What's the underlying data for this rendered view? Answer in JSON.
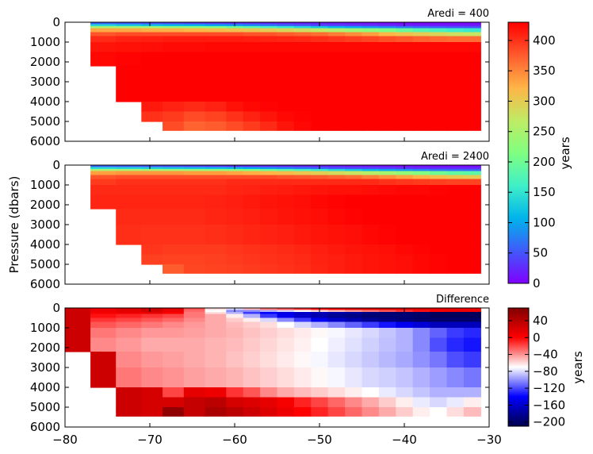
{
  "chart_data": [
    {
      "type": "heatmap",
      "title": "Aredi = 400",
      "xlim": [
        -80,
        -30
      ],
      "ylim": [
        6000,
        0
      ],
      "ylabel": "",
      "yticks": [
        "0",
        "1000",
        "2000",
        "3000",
        "4000",
        "5000",
        "6000"
      ],
      "colorbar": {
        "range": [
          0,
          430
        ],
        "label": "years",
        "ticks": [
          "0",
          "50",
          "100",
          "150",
          "200",
          "250",
          "300",
          "350",
          "400"
        ],
        "colormap": "rainbow"
      },
      "x_edges": [
        -80,
        -77,
        -74,
        -71,
        -68.5,
        -66,
        -63.5,
        -61,
        -59,
        -57,
        -55,
        -53,
        -51,
        -49,
        -47,
        -45,
        -43,
        -41,
        -39,
        -37,
        -35,
        -33,
        -31
      ],
      "depth_edges": [
        0,
        100,
        200,
        300,
        500,
        700,
        1000,
        1500,
        2200,
        3000,
        4000,
        4500,
        5000,
        5450
      ],
      "values": [
        [
          null,
          60,
          55,
          50,
          45,
          40,
          35,
          30,
          28,
          25,
          22,
          20,
          18,
          15,
          12,
          10,
          8,
          6,
          5,
          5,
          5,
          5
        ],
        [
          null,
          140,
          130,
          120,
          115,
          110,
          100,
          95,
          85,
          75,
          65,
          55,
          45,
          40,
          35,
          30,
          25,
          20,
          18,
          16,
          15,
          15
        ],
        [
          null,
          250,
          245,
          240,
          230,
          225,
          215,
          200,
          185,
          170,
          155,
          140,
          125,
          110,
          100,
          90,
          80,
          70,
          60,
          55,
          50,
          48
        ],
        [
          null,
          330,
          330,
          325,
          325,
          320,
          315,
          310,
          305,
          300,
          290,
          280,
          270,
          255,
          240,
          225,
          210,
          195,
          180,
          170,
          160,
          155
        ],
        [
          null,
          380,
          385,
          385,
          385,
          385,
          385,
          385,
          380,
          380,
          375,
          370,
          365,
          355,
          345,
          335,
          320,
          310,
          300,
          290,
          280,
          275
        ],
        [
          null,
          405,
          410,
          412,
          414,
          414,
          414,
          413,
          412,
          410,
          408,
          406,
          402,
          398,
          393,
          388,
          383,
          378,
          372,
          368,
          365,
          365
        ],
        [
          null,
          418,
          420,
          422,
          424,
          424,
          425,
          425,
          425,
          425,
          425,
          425,
          425,
          425,
          425,
          425,
          425,
          425,
          425,
          425,
          425,
          425
        ],
        [
          null,
          425,
          428,
          430,
          430,
          430,
          430,
          430,
          430,
          430,
          430,
          430,
          430,
          430,
          430,
          430,
          430,
          430,
          430,
          430,
          430,
          430
        ],
        [
          null,
          null,
          430,
          430,
          430,
          430,
          430,
          430,
          430,
          430,
          430,
          430,
          430,
          430,
          430,
          430,
          430,
          430,
          430,
          430,
          430,
          430
        ],
        [
          null,
          null,
          430,
          430,
          430,
          430,
          430,
          430,
          430,
          430,
          430,
          430,
          430,
          430,
          430,
          430,
          430,
          430,
          430,
          430,
          430,
          430
        ],
        [
          null,
          null,
          null,
          415,
          410,
          405,
          410,
          420,
          425,
          428,
          430,
          430,
          430,
          430,
          430,
          430,
          430,
          430,
          430,
          430,
          430,
          430
        ],
        [
          null,
          null,
          null,
          400,
          395,
          385,
          390,
          400,
          410,
          418,
          425,
          428,
          430,
          430,
          430,
          430,
          430,
          430,
          430,
          430,
          430,
          430
        ],
        [
          null,
          null,
          null,
          null,
          385,
          370,
          375,
          385,
          395,
          405,
          418,
          425,
          430,
          430,
          430,
          430,
          430,
          430,
          430,
          430,
          430,
          430
        ]
      ]
    },
    {
      "type": "heatmap",
      "title": "Aredi = 2400",
      "xlim": [
        -80,
        -30
      ],
      "ylim": [
        6000,
        0
      ],
      "ylabel": "Pressure (dbars)",
      "yticks": [
        "0",
        "1000",
        "2000",
        "3000",
        "4000",
        "5000",
        "6000"
      ],
      "colorbar": {
        "range": [
          0,
          430
        ],
        "label": "years",
        "colormap": "rainbow"
      },
      "x_edges": [
        -80,
        -77,
        -74,
        -71,
        -68.5,
        -66,
        -63.5,
        -61,
        -59,
        -57,
        -55,
        -53,
        -51,
        -49,
        -47,
        -45,
        -43,
        -41,
        -39,
        -37,
        -35,
        -33,
        -31
      ],
      "depth_edges": [
        0,
        100,
        200,
        300,
        500,
        700,
        1000,
        1500,
        2200,
        3000,
        4000,
        4500,
        5000,
        5450
      ],
      "values": [
        [
          null,
          60,
          55,
          50,
          45,
          40,
          35,
          30,
          28,
          25,
          22,
          20,
          18,
          15,
          12,
          10,
          8,
          6,
          5,
          5,
          5,
          5
        ],
        [
          null,
          145,
          140,
          135,
          130,
          125,
          120,
          115,
          105,
          95,
          85,
          75,
          65,
          55,
          50,
          45,
          40,
          35,
          30,
          28,
          26,
          25
        ],
        [
          null,
          255,
          255,
          250,
          245,
          240,
          235,
          225,
          215,
          200,
          185,
          170,
          155,
          140,
          125,
          110,
          100,
          90,
          80,
          70,
          65,
          60
        ],
        [
          null,
          335,
          340,
          340,
          340,
          335,
          335,
          330,
          325,
          320,
          315,
          305,
          295,
          285,
          275,
          260,
          245,
          230,
          215,
          200,
          190,
          185
        ],
        [
          null,
          380,
          385,
          385,
          385,
          385,
          385,
          385,
          385,
          385,
          380,
          378,
          375,
          370,
          365,
          355,
          345,
          335,
          325,
          315,
          305,
          300
        ],
        [
          null,
          395,
          400,
          400,
          400,
          400,
          400,
          405,
          405,
          405,
          405,
          405,
          405,
          405,
          405,
          405,
          400,
          398,
          395,
          392,
          390,
          390
        ],
        [
          null,
          405,
          405,
          405,
          405,
          405,
          405,
          408,
          410,
          412,
          414,
          416,
          418,
          420,
          420,
          422,
          424,
          425,
          426,
          428,
          430,
          430
        ],
        [
          null,
          408,
          408,
          408,
          408,
          408,
          410,
          412,
          415,
          418,
          420,
          422,
          425,
          428,
          430,
          430,
          430,
          430,
          430,
          430,
          430,
          430
        ],
        [
          null,
          null,
          405,
          405,
          405,
          405,
          408,
          410,
          412,
          415,
          418,
          420,
          422,
          425,
          428,
          430,
          430,
          430,
          430,
          430,
          430,
          430
        ],
        [
          null,
          null,
          402,
          400,
          400,
          400,
          402,
          405,
          408,
          410,
          412,
          415,
          418,
          420,
          422,
          425,
          428,
          430,
          430,
          430,
          430,
          430
        ],
        [
          null,
          null,
          null,
          398,
          395,
          395,
          395,
          398,
          400,
          402,
          405,
          408,
          412,
          415,
          418,
          420,
          422,
          425,
          428,
          430,
          430,
          430
        ],
        [
          null,
          null,
          null,
          392,
          390,
          390,
          392,
          395,
          398,
          400,
          402,
          405,
          410,
          412,
          415,
          418,
          420,
          422,
          425,
          428,
          430,
          430
        ],
        [
          null,
          null,
          null,
          null,
          375,
          388,
          390,
          392,
          395,
          398,
          400,
          404,
          408,
          412,
          415,
          418,
          420,
          422,
          425,
          428,
          430,
          430
        ]
      ]
    },
    {
      "type": "heatmap",
      "title": "Difference",
      "xlim": [
        -80,
        -30
      ],
      "ylim": [
        6000,
        0
      ],
      "xticks": [
        "−80",
        "−70",
        "−60",
        "−50",
        "−40",
        "−30"
      ],
      "yticks": [
        "0",
        "1000",
        "2000",
        "3000",
        "4000",
        "5000",
        "6000"
      ],
      "colorbar": {
        "range": [
          -210,
          70
        ],
        "label": "years",
        "ticks": [
          "40",
          "0",
          "−40",
          "−80",
          "−120",
          "−160",
          "−200"
        ],
        "colormap": "seismic"
      },
      "x_edges": [
        -80,
        -77,
        -74,
        -71,
        -68.5,
        -66,
        -63.5,
        -61,
        -59,
        -57,
        -55,
        -53,
        -51,
        -49,
        -47,
        -45,
        -43,
        -41,
        -39,
        -37,
        -35,
        -33,
        -31
      ],
      "depth_edges": [
        0,
        100,
        200,
        300,
        500,
        700,
        1000,
        1500,
        2200,
        3000,
        4000,
        4500,
        5000,
        5450
      ],
      "values": [
        [
          25,
          5,
          15,
          25,
          10,
          -30,
          -70,
          -90,
          -60,
          -40,
          -30,
          -20,
          -10,
          0,
          10,
          10,
          15,
          15,
          15,
          10,
          10,
          5
        ],
        [
          25,
          5,
          12,
          20,
          5,
          -35,
          -80,
          -110,
          -110,
          -100,
          -90,
          -80,
          -70,
          -60,
          -50,
          -40,
          -30,
          -20,
          -10,
          0,
          5,
          5
        ],
        [
          25,
          0,
          5,
          10,
          0,
          -40,
          -70,
          -100,
          -130,
          -145,
          -155,
          -165,
          -170,
          -175,
          -180,
          -190,
          -195,
          -200,
          -200,
          -205,
          -205,
          -205
        ],
        [
          25,
          -10,
          -15,
          -20,
          -25,
          -40,
          -55,
          -75,
          -100,
          -130,
          -150,
          -165,
          -175,
          -185,
          -190,
          -195,
          -195,
          -195,
          -200,
          -205,
          -205,
          -205
        ],
        [
          25,
          -20,
          -25,
          -30,
          -35,
          -45,
          -55,
          -65,
          -75,
          -90,
          -110,
          -130,
          -150,
          -165,
          -175,
          -185,
          -190,
          -195,
          -200,
          -200,
          -200,
          -200
        ],
        [
          25,
          -30,
          -35,
          -40,
          -45,
          -50,
          -55,
          -60,
          -65,
          -70,
          -80,
          -90,
          -100,
          -110,
          -120,
          -130,
          -140,
          -150,
          -160,
          -170,
          -170,
          -170
        ],
        [
          25,
          -40,
          -45,
          -50,
          -50,
          -52,
          -55,
          -58,
          -62,
          -66,
          -70,
          -74,
          -78,
          -82,
          -86,
          -90,
          -95,
          -100,
          -110,
          -120,
          -130,
          -135
        ],
        [
          25,
          -45,
          -50,
          -55,
          -55,
          -55,
          -58,
          -60,
          -64,
          -68,
          -72,
          -76,
          -80,
          -84,
          -88,
          -92,
          -96,
          -100,
          -110,
          -125,
          -135,
          -140
        ],
        [
          null,
          25,
          -45,
          -50,
          -52,
          -55,
          -58,
          -62,
          -66,
          -70,
          -74,
          -78,
          -82,
          -86,
          -90,
          -94,
          -98,
          -102,
          -108,
          -115,
          -125,
          -130
        ],
        [
          null,
          25,
          -40,
          -45,
          -48,
          -52,
          -55,
          -58,
          -62,
          -66,
          -70,
          -74,
          -78,
          -82,
          -86,
          -90,
          -92,
          -95,
          -100,
          -105,
          -110,
          -115
        ],
        [
          null,
          null,
          25,
          20,
          -25,
          10,
          5,
          -20,
          -30,
          -45,
          -55,
          -60,
          -65,
          -70,
          -75,
          -80,
          -85,
          -90,
          -95,
          -100,
          -100,
          -100
        ],
        [
          null,
          null,
          25,
          20,
          20,
          30,
          35,
          20,
          15,
          10,
          0,
          -15,
          -25,
          -35,
          -45,
          -55,
          -65,
          -75,
          -85,
          -90,
          -85,
          -75
        ],
        [
          null,
          null,
          25,
          20,
          60,
          30,
          45,
          35,
          25,
          15,
          5,
          -5,
          -15,
          -25,
          -35,
          -45,
          -55,
          -65,
          -75,
          -80,
          -70,
          -60
        ]
      ]
    }
  ]
}
